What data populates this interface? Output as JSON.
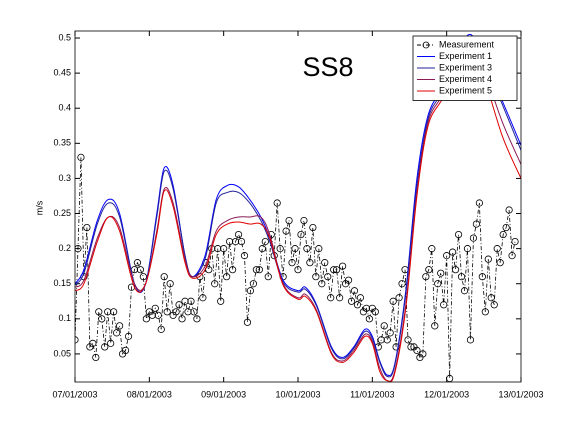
{
  "chart_data": {
    "type": "line",
    "title": "SS8",
    "y_label": "m/s",
    "xlim": [
      0,
      6
    ],
    "xticks": [
      {
        "value": 0,
        "label": "07/01/2003"
      },
      {
        "value": 1,
        "label": "08/01/2003"
      },
      {
        "value": 2,
        "label": "09/01/2003"
      },
      {
        "value": 3,
        "label": "10/01/2003"
      },
      {
        "value": 4,
        "label": "11/01/2003"
      },
      {
        "value": 5,
        "label": "12/01/2003"
      },
      {
        "value": 6,
        "label": "13/01/2003"
      }
    ],
    "ylim": [
      0.01,
      0.51
    ],
    "yticks": [
      0.05,
      0.1,
      0.15,
      0.2,
      0.25,
      0.3,
      0.35,
      0.4,
      0.45,
      0.5
    ],
    "legend": "upper right",
    "grid": false,
    "series": [
      {
        "name": "Measurement",
        "color": "#000000",
        "style": "dash-dot",
        "marker": "circle",
        "x": [
          0,
          0.04,
          0.08,
          0.12,
          0.16,
          0.2,
          0.24,
          0.28,
          0.32,
          0.36,
          0.4,
          0.44,
          0.48,
          0.52,
          0.56,
          0.6,
          0.64,
          0.68,
          0.72,
          0.76,
          0.8,
          0.84,
          0.88,
          0.92,
          0.96,
          1,
          1.04,
          1.08,
          1.12,
          1.16,
          1.2,
          1.24,
          1.28,
          1.32,
          1.36,
          1.4,
          1.44,
          1.48,
          1.52,
          1.56,
          1.6,
          1.64,
          1.68,
          1.72,
          1.76,
          1.8,
          1.84,
          1.88,
          1.92,
          1.96,
          2,
          2.04,
          2.08,
          2.12,
          2.16,
          2.2,
          2.24,
          2.28,
          2.32,
          2.36,
          2.4,
          2.44,
          2.48,
          2.52,
          2.56,
          2.6,
          2.64,
          2.68,
          2.72,
          2.76,
          2.8,
          2.84,
          2.88,
          2.92,
          2.96,
          3,
          3.04,
          3.08,
          3.12,
          3.16,
          3.2,
          3.24,
          3.28,
          3.32,
          3.36,
          3.4,
          3.44,
          3.48,
          3.52,
          3.56,
          3.6,
          3.64,
          3.68,
          3.72,
          3.76,
          3.8,
          3.84,
          3.88,
          3.92,
          3.96,
          4,
          4.04,
          4.08,
          4.12,
          4.16,
          4.2,
          4.24,
          4.28,
          4.32,
          4.36,
          4.4,
          4.44,
          4.48,
          4.52,
          4.56,
          4.6,
          4.64,
          4.68,
          4.72,
          4.76,
          4.8,
          4.84,
          4.88,
          4.92,
          4.96,
          5,
          5.04,
          5.08,
          5.12,
          5.16,
          5.2,
          5.24,
          5.28,
          5.32,
          5.36,
          5.4,
          5.44,
          5.48,
          5.52,
          5.56,
          5.6,
          5.64,
          5.68,
          5.72,
          5.76,
          5.8,
          5.84,
          5.88,
          5.92
        ],
        "values": [
          0.07,
          0.2,
          0.33,
          0.16,
          0.23,
          0.06,
          0.065,
          0.045,
          0.11,
          0.1,
          0.06,
          0.11,
          0.065,
          0.11,
          0.08,
          0.09,
          0.05,
          0.055,
          0.075,
          0.145,
          0.17,
          0.18,
          0.17,
          0.16,
          0.1,
          0.11,
          0.105,
          0.115,
          0.105,
          0.085,
          0.16,
          0.11,
          0.15,
          0.105,
          0.11,
          0.12,
          0.1,
          0.125,
          0.11,
          0.125,
          0.11,
          0.1,
          0.16,
          0.13,
          0.18,
          0.17,
          0.2,
          0.15,
          0.2,
          0.125,
          0.2,
          0.16,
          0.21,
          0.17,
          0.21,
          0.22,
          0.21,
          0.19,
          0.095,
          0.14,
          0.15,
          0.17,
          0.17,
          0.2,
          0.21,
          0.16,
          0.22,
          0.19,
          0.265,
          0.2,
          0.16,
          0.225,
          0.24,
          0.18,
          0.2,
          0.17,
          0.22,
          0.24,
          0.2,
          0.18,
          0.23,
          0.16,
          0.2,
          0.15,
          0.18,
          0.16,
          0.13,
          0.17,
          0.17,
          0.13,
          0.175,
          0.15,
          0.155,
          0.125,
          0.14,
          0.12,
          0.13,
          0.11,
          0.115,
          0.1,
          0.115,
          0.11,
          0.06,
          0.07,
          0.09,
          0.07,
          0.08,
          0.125,
          0.06,
          0.13,
          0.15,
          0.17,
          0.07,
          0.06,
          0.06,
          0.055,
          0.045,
          0.05,
          0.16,
          0.17,
          0.2,
          0.09,
          0.15,
          0.165,
          0.12,
          0.19,
          0.015,
          0.195,
          0.17,
          0.22,
          0.16,
          0.14,
          0.2,
          0.07,
          0.215,
          0.235,
          0.265,
          0.16,
          0.11,
          0.185,
          0.13,
          0.12,
          0.2,
          0.18,
          0.22,
          0.23,
          0.255,
          0.19,
          0.21
        ]
      },
      {
        "name": "Experiment 1",
        "color": "#0000ff",
        "x": [
          0,
          0.12,
          0.3,
          0.45,
          0.6,
          0.8,
          0.95,
          1.1,
          1.2,
          1.32,
          1.48,
          1.58,
          1.75,
          1.9,
          2.05,
          2.2,
          2.35,
          2.5,
          2.62,
          2.8,
          3,
          3.1,
          3.25,
          3.45,
          3.6,
          3.75,
          3.9,
          4,
          4.1,
          4.2,
          4.3,
          4.45,
          4.6,
          4.75,
          4.95,
          5.15,
          5.32,
          5.5,
          5.75,
          6
        ],
        "values": [
          0.15,
          0.17,
          0.24,
          0.27,
          0.25,
          0.15,
          0.15,
          0.25,
          0.315,
          0.29,
          0.19,
          0.16,
          0.19,
          0.27,
          0.29,
          0.288,
          0.27,
          0.245,
          0.215,
          0.155,
          0.14,
          0.145,
          0.12,
          0.06,
          0.045,
          0.06,
          0.085,
          0.075,
          0.04,
          0.02,
          0.035,
          0.14,
          0.3,
          0.39,
          0.43,
          0.48,
          0.505,
          0.47,
          0.41,
          0.347
        ]
      },
      {
        "name": "Experiment 3",
        "color": "#22229a",
        "x": [
          0,
          0.12,
          0.3,
          0.45,
          0.6,
          0.8,
          0.95,
          1.1,
          1.2,
          1.32,
          1.48,
          1.58,
          1.75,
          1.9,
          2.05,
          2.2,
          2.35,
          2.5,
          2.62,
          2.8,
          3,
          3.1,
          3.25,
          3.45,
          3.6,
          3.75,
          3.9,
          4,
          4.1,
          4.2,
          4.3,
          4.45,
          4.6,
          4.75,
          4.95,
          5.15,
          5.32,
          5.5,
          5.75,
          6
        ],
        "values": [
          0.148,
          0.165,
          0.235,
          0.265,
          0.245,
          0.15,
          0.15,
          0.245,
          0.31,
          0.285,
          0.19,
          0.16,
          0.185,
          0.265,
          0.28,
          0.28,
          0.265,
          0.24,
          0.21,
          0.152,
          0.138,
          0.142,
          0.118,
          0.058,
          0.043,
          0.058,
          0.082,
          0.072,
          0.038,
          0.018,
          0.033,
          0.135,
          0.29,
          0.385,
          0.425,
          0.475,
          0.5,
          0.468,
          0.405,
          0.34
        ]
      },
      {
        "name": "Experiment 4",
        "color": "#8b1a55",
        "x": [
          0,
          0.12,
          0.3,
          0.45,
          0.6,
          0.8,
          0.95,
          1.1,
          1.2,
          1.32,
          1.48,
          1.58,
          1.75,
          1.9,
          2.05,
          2.2,
          2.35,
          2.5,
          2.62,
          2.8,
          3,
          3.1,
          3.25,
          3.45,
          3.6,
          3.75,
          3.9,
          4,
          4.1,
          4.2,
          4.3,
          4.45,
          4.6,
          4.75,
          4.95,
          5.15,
          5.32,
          5.5,
          5.75,
          6
        ],
        "values": [
          0.145,
          0.155,
          0.215,
          0.245,
          0.23,
          0.15,
          0.15,
          0.225,
          0.285,
          0.265,
          0.185,
          0.16,
          0.175,
          0.225,
          0.24,
          0.245,
          0.245,
          0.245,
          0.22,
          0.15,
          0.13,
          0.135,
          0.112,
          0.052,
          0.04,
          0.055,
          0.078,
          0.068,
          0.03,
          0.012,
          0.025,
          0.12,
          0.28,
          0.38,
          0.42,
          0.47,
          0.495,
          0.455,
          0.38,
          0.32
        ]
      },
      {
        "name": "Experiment 5",
        "color": "#e00000",
        "x": [
          0,
          0.12,
          0.3,
          0.45,
          0.6,
          0.8,
          0.95,
          1.1,
          1.2,
          1.32,
          1.48,
          1.58,
          1.75,
          1.9,
          2.05,
          2.2,
          2.35,
          2.5,
          2.62,
          2.8,
          3,
          3.1,
          3.25,
          3.45,
          3.6,
          3.75,
          3.9,
          4,
          4.1,
          4.2,
          4.3,
          4.45,
          4.6,
          4.75,
          4.95,
          5.15,
          5.32,
          5.5,
          5.75,
          6
        ],
        "values": [
          0.14,
          0.15,
          0.21,
          0.245,
          0.225,
          0.145,
          0.15,
          0.22,
          0.282,
          0.26,
          0.18,
          0.158,
          0.17,
          0.22,
          0.235,
          0.238,
          0.235,
          0.235,
          0.215,
          0.148,
          0.128,
          0.132,
          0.11,
          0.05,
          0.038,
          0.052,
          0.075,
          0.065,
          0.025,
          0.012,
          0.022,
          0.115,
          0.275,
          0.375,
          0.415,
          0.465,
          0.49,
          0.445,
          0.36,
          0.3
        ]
      }
    ]
  }
}
